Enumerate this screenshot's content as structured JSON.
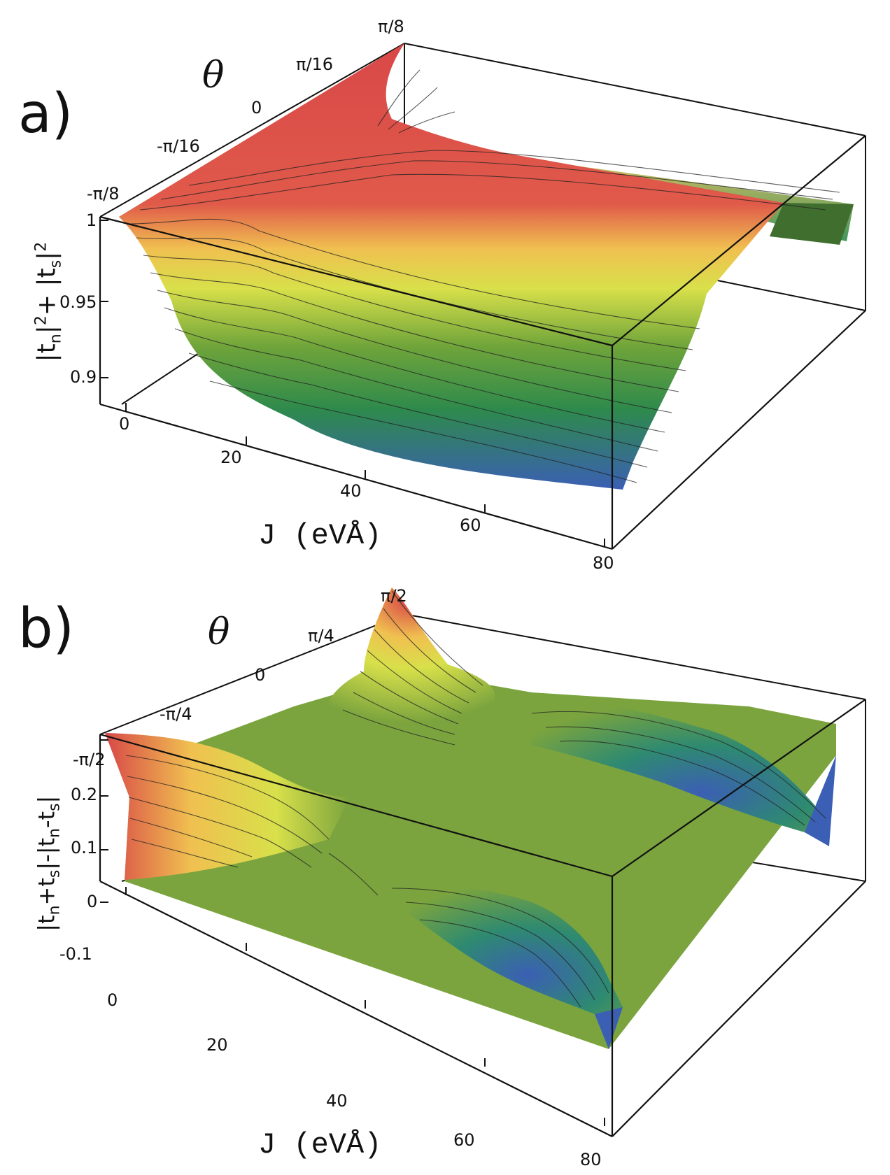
{
  "chart_data": [
    {
      "panel_label": "a)",
      "type": "surface",
      "xlabel": "J (eVÅ)",
      "ylabel": "θ",
      "zlabel": {
        "pre": "|t",
        "sub1": "n",
        "mid": "|",
        "sup1": "2",
        "mid2": "+ |t",
        "sub2": "s",
        "end": "|",
        "sup2": "2"
      },
      "x_ticks": [
        "0",
        "20",
        "40",
        "60",
        "80"
      ],
      "y_ticks": [
        "-π/8",
        "-π/16",
        "0",
        "π/16",
        "π/8"
      ],
      "z_ticks": [
        "1",
        "0.95",
        "0.9"
      ],
      "xlim": [
        0,
        80
      ],
      "ylim": [
        -0.3927,
        0.3927
      ],
      "zlim": [
        0.88,
        1.0
      ],
      "colormap": [
        "#3b5fb4",
        "#2e8a4c",
        "#6fa43a",
        "#d8e04a",
        "#f0c050",
        "#e05a4a",
        "#d84848"
      ],
      "contour_lines": true,
      "samples": {
        "J": [
          0,
          10,
          20,
          30,
          40,
          50,
          60,
          70,
          80
        ],
        "note_theta_edges": [
          -0.3927,
          0,
          0.3927
        ],
        "z_at_theta_min": [
          1.0,
          0.99,
          0.98,
          0.975,
          0.97,
          0.965,
          0.96,
          0.955,
          0.95
        ],
        "z_at_theta_0": [
          0.998,
          0.955,
          0.9,
          0.885,
          0.885,
          0.888,
          0.89,
          0.892,
          0.895
        ],
        "z_at_theta_max": [
          1.0,
          0.97,
          0.99,
          0.995,
          0.997,
          0.998,
          0.998,
          0.997,
          0.995
        ]
      }
    },
    {
      "panel_label": "b)",
      "type": "surface",
      "xlabel": "J (eVÅ)",
      "ylabel": "θ",
      "zlabel": {
        "pre": "|t",
        "sub1": "n",
        "mid": "+t",
        "sub2": "s",
        "mid2": "|-|t",
        "sub3": "n",
        "mid3": "-t",
        "sub4": "s",
        "end": "|"
      },
      "x_ticks": [
        "0",
        "20",
        "40",
        "60",
        "80"
      ],
      "y_ticks": [
        "-π/2",
        "-π/4",
        "0",
        "π/4",
        "π/2"
      ],
      "z_ticks": [
        "0.2",
        "0.1",
        "0",
        "-0.1"
      ],
      "xlim": [
        0,
        80
      ],
      "ylim": [
        -1.5708,
        1.5708
      ],
      "zlim": [
        -0.15,
        0.2
      ],
      "colormap": [
        "#3b5fb4",
        "#2e8a4c",
        "#6fa43a",
        "#d8e04a",
        "#f0c050",
        "#e05a4a",
        "#d84848"
      ],
      "contour_lines": true,
      "samples": {
        "J": [
          0,
          10,
          20,
          30,
          40,
          50,
          60,
          70,
          80
        ],
        "z_at_theta_min": [
          0.2,
          0.15,
          0.08,
          0.02,
          0.0,
          -0.02,
          -0.06,
          -0.1,
          -0.12
        ],
        "z_at_theta_0": [
          0.0,
          0.02,
          0.05,
          0.03,
          0.0,
          -0.03,
          -0.05,
          -0.02,
          0.0
        ],
        "z_at_theta_max": [
          0.2,
          0.1,
          0.02,
          -0.05,
          -0.1,
          -0.12,
          -0.1,
          -0.05,
          -0.04
        ]
      }
    }
  ]
}
